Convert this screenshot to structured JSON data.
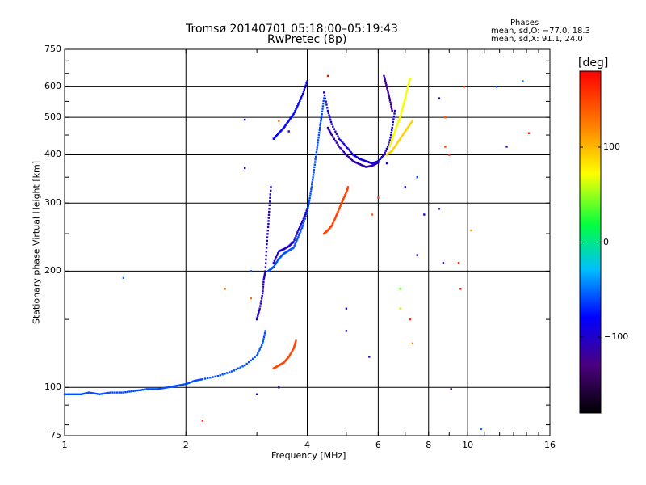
{
  "header": {
    "title": "Tromsø 20140701 05:18:00–05:19:43",
    "subtitle": "RwPretec (8p)",
    "phases_title": "Phases",
    "phases_o": "mean, sd,O: −77.0, 18.3",
    "phases_x": "mean, sd,X:  91.1, 24.0"
  },
  "colorbar": {
    "unit_label": "[deg]",
    "range": [
      -180,
      180
    ],
    "ticks": [
      {
        "value": 100,
        "label": "100"
      },
      {
        "value": 0,
        "label": "0"
      },
      {
        "value": -100,
        "label": "−100"
      }
    ]
  },
  "chart_data": {
    "type": "scatter",
    "title": "Tromsø 20140701 05:18:00–05:19:43",
    "subtitle": "RwPretec (8p)",
    "xlabel": "Frequency [MHz]",
    "ylabel": "Stationary phase Virtual Height [km]",
    "xscale": "log",
    "yscale": "log",
    "xlim": [
      1,
      16
    ],
    "ylim": [
      75,
      750
    ],
    "x_ticks": [
      {
        "value": 1,
        "label": "1"
      },
      {
        "value": 2,
        "label": "2"
      },
      {
        "value": 4,
        "label": "4"
      },
      {
        "value": 6,
        "label": "6"
      },
      {
        "value": 8,
        "label": "8"
      },
      {
        "value": 10,
        "label": "10"
      },
      {
        "value": 16,
        "label": "16"
      }
    ],
    "y_ticks": [
      {
        "value": 75,
        "label": "75"
      },
      {
        "value": 100,
        "label": "100"
      },
      {
        "value": 200,
        "label": "200"
      },
      {
        "value": 300,
        "label": "300"
      },
      {
        "value": 400,
        "label": "400"
      },
      {
        "value": 500,
        "label": "500"
      },
      {
        "value": 600,
        "label": "600"
      },
      {
        "value": 750,
        "label": "750"
      }
    ],
    "x_gridlines": [
      2,
      4,
      6,
      8,
      10
    ],
    "y_gridlines": [
      100,
      200,
      300,
      400,
      500,
      600
    ],
    "grid": true,
    "color_encoding": "phase [deg]",
    "traces": [
      {
        "phase": -60,
        "points": [
          [
            1.0,
            96
          ],
          [
            1.05,
            96
          ],
          [
            1.1,
            96
          ],
          [
            1.15,
            97
          ],
          [
            1.22,
            96
          ],
          [
            1.3,
            97
          ],
          [
            1.4,
            97
          ],
          [
            1.5,
            98
          ],
          [
            1.6,
            99
          ],
          [
            1.7,
            99
          ],
          [
            1.8,
            100
          ],
          [
            1.9,
            101
          ],
          [
            2.0,
            102
          ],
          [
            2.1,
            104
          ],
          [
            2.2,
            105
          ],
          [
            2.4,
            107
          ],
          [
            2.6,
            110
          ],
          [
            2.8,
            114
          ],
          [
            3.0,
            121
          ],
          [
            3.1,
            130
          ],
          [
            3.15,
            140
          ]
        ]
      },
      {
        "phase": -60,
        "points": [
          [
            3.2,
            200
          ],
          [
            3.3,
            205
          ],
          [
            3.4,
            215
          ],
          [
            3.5,
            222
          ],
          [
            3.6,
            226
          ],
          [
            3.7,
            230
          ],
          [
            3.8,
            245
          ],
          [
            3.9,
            262
          ],
          [
            4.0,
            285
          ],
          [
            4.05,
            305
          ],
          [
            4.1,
            330
          ],
          [
            4.15,
            360
          ],
          [
            4.2,
            395
          ],
          [
            4.25,
            430
          ],
          [
            4.3,
            470
          ],
          [
            4.35,
            510
          ],
          [
            4.4,
            560
          ]
        ]
      },
      {
        "phase": -100,
        "points": [
          [
            3.3,
            210
          ],
          [
            3.4,
            225
          ],
          [
            3.5,
            228
          ],
          [
            3.6,
            232
          ],
          [
            3.7,
            238
          ],
          [
            3.8,
            255
          ],
          [
            3.9,
            270
          ],
          [
            4.0,
            290
          ]
        ]
      },
      {
        "phase": -95,
        "points": [
          [
            4.4,
            580
          ],
          [
            4.5,
            520
          ],
          [
            4.6,
            480
          ],
          [
            4.8,
            440
          ],
          [
            5.0,
            420
          ],
          [
            5.2,
            400
          ],
          [
            5.4,
            390
          ],
          [
            5.6,
            385
          ],
          [
            5.8,
            380
          ],
          [
            6.0,
            385
          ],
          [
            6.2,
            400
          ],
          [
            6.4,
            430
          ],
          [
            6.5,
            470
          ],
          [
            6.6,
            520
          ]
        ]
      },
      {
        "phase": -110,
        "points": [
          [
            4.5,
            470
          ],
          [
            4.6,
            450
          ],
          [
            4.8,
            420
          ],
          [
            5.0,
            400
          ],
          [
            5.2,
            385
          ],
          [
            5.4,
            378
          ],
          [
            5.6,
            372
          ],
          [
            5.8,
            375
          ],
          [
            6.0,
            382
          ]
        ]
      },
      {
        "phase": -80,
        "points": [
          [
            3.3,
            440
          ],
          [
            3.4,
            455
          ],
          [
            3.5,
            470
          ],
          [
            3.6,
            490
          ],
          [
            3.7,
            510
          ],
          [
            3.8,
            540
          ],
          [
            3.9,
            575
          ],
          [
            4.0,
            620
          ]
        ]
      },
      {
        "phase": -105,
        "points": [
          [
            3.0,
            150
          ],
          [
            3.05,
            160
          ],
          [
            3.1,
            175
          ],
          [
            3.12,
            190
          ],
          [
            3.15,
            200
          ],
          [
            3.17,
            230
          ],
          [
            3.2,
            260
          ],
          [
            3.22,
            290
          ],
          [
            3.25,
            330
          ]
        ]
      },
      {
        "phase": 150,
        "points": [
          [
            4.4,
            250
          ],
          [
            4.5,
            255
          ],
          [
            4.6,
            262
          ],
          [
            4.7,
            275
          ],
          [
            4.8,
            290
          ],
          [
            4.9,
            305
          ],
          [
            5.0,
            320
          ],
          [
            5.05,
            330
          ]
        ]
      },
      {
        "phase": 150,
        "points": [
          [
            3.3,
            112
          ],
          [
            3.4,
            114
          ],
          [
            3.5,
            116
          ],
          [
            3.6,
            120
          ],
          [
            3.7,
            126
          ],
          [
            3.75,
            132
          ]
        ]
      },
      {
        "phase": 70,
        "points": [
          [
            6.4,
            420
          ],
          [
            6.5,
            440
          ],
          [
            6.6,
            460
          ],
          [
            6.7,
            480
          ],
          [
            6.8,
            500
          ],
          [
            6.9,
            530
          ],
          [
            7.0,
            560
          ],
          [
            7.1,
            600
          ],
          [
            7.2,
            630
          ]
        ]
      },
      {
        "phase": 90,
        "points": [
          [
            6.3,
            400
          ],
          [
            6.5,
            410
          ],
          [
            6.7,
            430
          ],
          [
            6.9,
            450
          ],
          [
            7.1,
            470
          ],
          [
            7.3,
            490
          ]
        ]
      },
      {
        "phase": -120,
        "points": [
          [
            6.2,
            640
          ],
          [
            6.3,
            600
          ],
          [
            6.4,
            560
          ],
          [
            6.5,
            520
          ]
        ]
      }
    ],
    "scatter": [
      {
        "x": 1.4,
        "y": 192,
        "phase": -50
      },
      {
        "x": 2.8,
        "y": 493,
        "phase": -110
      },
      {
        "x": 2.8,
        "y": 370,
        "phase": -100
      },
      {
        "x": 3.4,
        "y": 490,
        "phase": 140
      },
      {
        "x": 3.6,
        "y": 460,
        "phase": -90
      },
      {
        "x": 4.5,
        "y": 640,
        "phase": 170
      },
      {
        "x": 5.0,
        "y": 160,
        "phase": -100
      },
      {
        "x": 5.0,
        "y": 140,
        "phase": -110
      },
      {
        "x": 5.7,
        "y": 120,
        "phase": -100
      },
      {
        "x": 5.8,
        "y": 280,
        "phase": 140
      },
      {
        "x": 6.0,
        "y": 310,
        "phase": 150
      },
      {
        "x": 6.3,
        "y": 380,
        "phase": -100
      },
      {
        "x": 6.8,
        "y": 180,
        "phase": 40
      },
      {
        "x": 6.8,
        "y": 160,
        "phase": 60
      },
      {
        "x": 7.0,
        "y": 330,
        "phase": -100
      },
      {
        "x": 7.2,
        "y": 150,
        "phase": 160
      },
      {
        "x": 7.3,
        "y": 130,
        "phase": 120
      },
      {
        "x": 7.5,
        "y": 350,
        "phase": -60
      },
      {
        "x": 7.5,
        "y": 220,
        "phase": -110
      },
      {
        "x": 7.8,
        "y": 280,
        "phase": -90
      },
      {
        "x": 8.5,
        "y": 560,
        "phase": -110
      },
      {
        "x": 8.8,
        "y": 500,
        "phase": 140
      },
      {
        "x": 8.8,
        "y": 420,
        "phase": 160
      },
      {
        "x": 9.0,
        "y": 400,
        "phase": 170
      },
      {
        "x": 8.5,
        "y": 290,
        "phase": -100
      },
      {
        "x": 8.7,
        "y": 210,
        "phase": -110
      },
      {
        "x": 9.1,
        "y": 99,
        "phase": -150
      },
      {
        "x": 9.5,
        "y": 210,
        "phase": 170
      },
      {
        "x": 9.6,
        "y": 180,
        "phase": 170
      },
      {
        "x": 9.8,
        "y": 600,
        "phase": 160
      },
      {
        "x": 10.2,
        "y": 255,
        "phase": 110
      },
      {
        "x": 10.8,
        "y": 78,
        "phase": -50
      },
      {
        "x": 11.8,
        "y": 600,
        "phase": -60
      },
      {
        "x": 12.5,
        "y": 420,
        "phase": -110
      },
      {
        "x": 13.7,
        "y": 620,
        "phase": -50
      },
      {
        "x": 14.2,
        "y": 455,
        "phase": 170
      },
      {
        "x": 2.2,
        "y": 82,
        "phase": 170
      },
      {
        "x": 2.5,
        "y": 180,
        "phase": 130
      },
      {
        "x": 2.9,
        "y": 170,
        "phase": 130
      },
      {
        "x": 3.0,
        "y": 96,
        "phase": -110
      },
      {
        "x": 2.9,
        "y": 200,
        "phase": -60
      },
      {
        "x": 3.4,
        "y": 100,
        "phase": -120
      }
    ]
  }
}
